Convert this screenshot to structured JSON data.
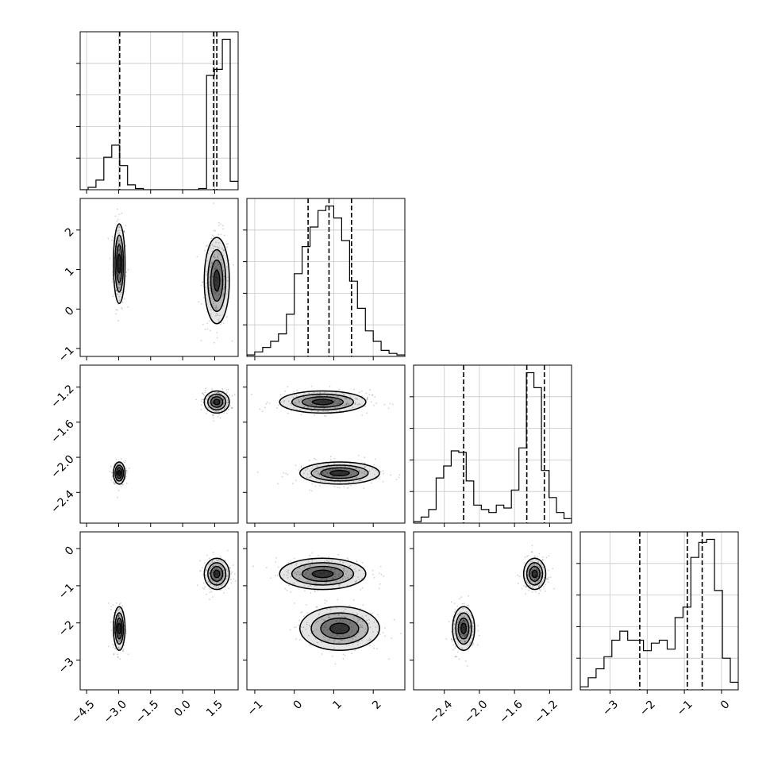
{
  "chart_data": {
    "type": "corner",
    "grid": true,
    "params": [
      {
        "lim": [
          -4.8,
          2.6
        ],
        "ticks": [
          -4.5,
          -3.0,
          -1.5,
          0.0,
          1.5
        ],
        "tick_labels": [
          "−4.5",
          "−3.0",
          "−1.5",
          "0.0",
          "1.5"
        ],
        "quantiles": [
          -2.95,
          1.45,
          1.6
        ],
        "hist": [
          0,
          0.02,
          0.08,
          0.27,
          0.37,
          0.2,
          0.04,
          0.01,
          0,
          0,
          0,
          0,
          0,
          0,
          0,
          0.01,
          0.95,
          1.0,
          1.25,
          0.07
        ]
      },
      {
        "lim": [
          -1.2,
          2.8
        ],
        "ticks": [
          -1,
          0,
          1,
          2
        ],
        "tick_labels": [
          "−1",
          "0",
          "1",
          "2"
        ],
        "quantiles": [
          0.35,
          0.88,
          1.45
        ],
        "hist": [
          0.01,
          0.03,
          0.06,
          0.1,
          0.15,
          0.28,
          0.55,
          0.73,
          0.86,
          0.97,
          1.0,
          0.92,
          0.77,
          0.5,
          0.32,
          0.17,
          0.1,
          0.04,
          0.02,
          0.01
        ]
      },
      {
        "lim": [
          -2.75,
          -0.95
        ],
        "ticks": [
          -2.4,
          -2.0,
          -1.6,
          -1.2
        ],
        "tick_labels": [
          "−2.4",
          "−2.0",
          "−1.6",
          "−1.2"
        ],
        "quantiles": [
          -2.18,
          -1.46,
          -1.26
        ],
        "hist": [
          0.01,
          0.04,
          0.09,
          0.3,
          0.38,
          0.48,
          0.47,
          0.28,
          0.12,
          0.09,
          0.07,
          0.12,
          0.1,
          0.22,
          0.5,
          1.0,
          0.9,
          0.35,
          0.17,
          0.07,
          0.03
        ]
      },
      {
        "lim": [
          -3.8,
          0.45
        ],
        "ticks": [
          -3,
          -2,
          -1,
          0
        ],
        "tick_labels": [
          "−3",
          "−2",
          "−1",
          "0"
        ],
        "quantiles": [
          -2.2,
          -0.92,
          -0.52
        ],
        "hist": [
          0.02,
          0.08,
          0.14,
          0.22,
          0.33,
          0.39,
          0.33,
          0.33,
          0.26,
          0.31,
          0.33,
          0.27,
          0.48,
          0.55,
          0.88,
          0.98,
          1.0,
          0.66,
          0.21,
          0.05
        ]
      }
    ],
    "clusters": [
      [
        -2.97,
        1.15,
        -2.18,
        -2.15
      ],
      [
        1.6,
        0.72,
        -1.37,
        -0.68
      ]
    ],
    "spread": [
      [
        0.13,
        0.28
      ],
      [
        0.48,
        0.52
      ],
      [
        0.06,
        0.06
      ],
      [
        0.28,
        0.2
      ]
    ]
  }
}
